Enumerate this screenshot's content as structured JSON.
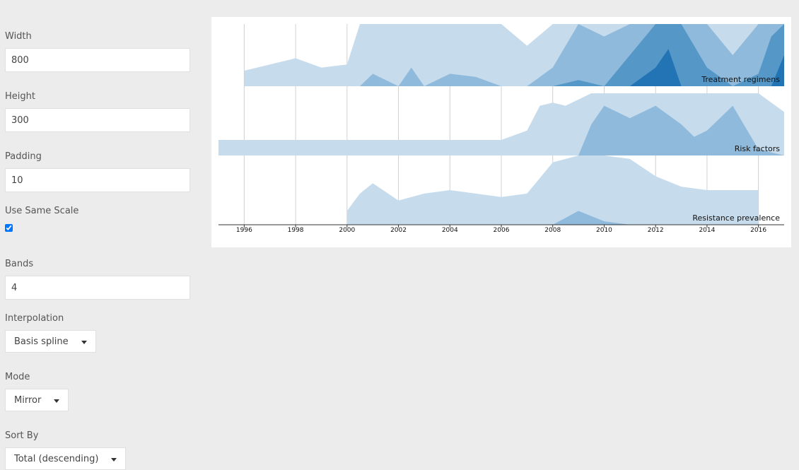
{
  "controls": {
    "width": {
      "label": "Width",
      "value": "800"
    },
    "height": {
      "label": "Height",
      "value": "300"
    },
    "padding": {
      "label": "Padding",
      "value": "10"
    },
    "same_scale": {
      "label": "Use Same Scale",
      "checked": true
    },
    "bands": {
      "label": "Bands",
      "value": "4"
    },
    "interpolation": {
      "label": "Interpolation",
      "value": "Basis spline"
    },
    "mode": {
      "label": "Mode",
      "value": "Mirror"
    },
    "sort_by": {
      "label": "Sort By",
      "value": "Total (descending)"
    }
  },
  "colors": {
    "band1": "#c6dbec",
    "band2": "#8fbadc",
    "band3": "#5598c8",
    "band4": "#2274b4"
  },
  "chart_data": {
    "type": "area",
    "variant": "horizon",
    "bands": 4,
    "mode": "mirror",
    "xlim": [
      1995,
      2017
    ],
    "x_ticks": [
      "1996",
      "1998",
      "2000",
      "2002",
      "2004",
      "2006",
      "2008",
      "2010",
      "2012",
      "2014",
      "2016"
    ],
    "grid": true,
    "series": [
      {
        "name": "Treatment regimens",
        "x": [
          1996,
          1996.5,
          1997,
          1998,
          1999,
          2000,
          2000.5,
          2001,
          2002,
          2002.5,
          2003,
          2004,
          2005,
          2006,
          2007,
          2008,
          2009,
          2010,
          2011,
          2012,
          2012.5,
          2013,
          2014,
          2015,
          2016,
          2016.5,
          2017
        ],
        "y": [
          0.25,
          0.3,
          0.35,
          0.45,
          0.3,
          0.35,
          1.0,
          1.2,
          1.0,
          1.3,
          1.0,
          1.2,
          1.15,
          1.0,
          0.65,
          1.3,
          2.1,
          1.8,
          2.5,
          3.3,
          3.6,
          3.0,
          2.3,
          1.5,
          2.2,
          2.8,
          3.5
        ]
      },
      {
        "name": "Risk factors",
        "x": [
          1995,
          2000,
          2006,
          2007,
          2007.5,
          2008,
          2008.5,
          2009,
          2009.5,
          2010,
          2011,
          2012,
          2013,
          2013.5,
          2014,
          2015,
          2016,
          2017
        ],
        "y": [
          0.25,
          0.25,
          0.25,
          0.4,
          0.8,
          0.85,
          0.8,
          0.9,
          1.5,
          1.8,
          1.6,
          1.8,
          1.5,
          1.3,
          1.4,
          1.8,
          1.1,
          0.7
        ]
      },
      {
        "name": "Resistance prevalence",
        "x": [
          2000,
          2000.5,
          2001,
          2002,
          2003,
          2004,
          2005,
          2006,
          2007,
          2008,
          2009,
          2010,
          2011,
          2012,
          2013,
          2014,
          2016
        ],
        "y": [
          0.2,
          0.45,
          0.6,
          0.35,
          0.45,
          0.5,
          0.45,
          0.4,
          0.45,
          0.9,
          1.2,
          1.05,
          0.95,
          0.7,
          0.55,
          0.5,
          0.5
        ]
      }
    ]
  }
}
